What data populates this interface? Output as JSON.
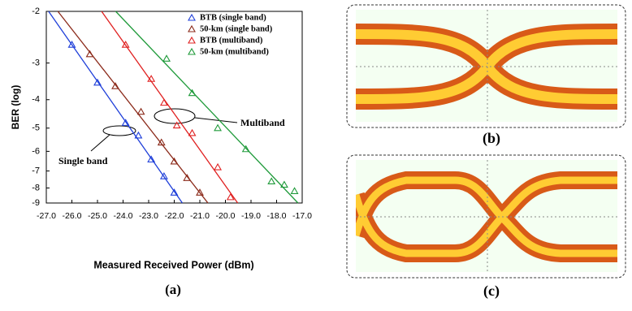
{
  "chart_data": {
    "type": "scatter",
    "yscale": "log",
    "xlabel": "Measured Received Power (dBm)",
    "ylabel": "BER (log)",
    "xlim": [
      -27,
      -17
    ],
    "ylim": [
      -2,
      -9
    ],
    "xticks": [
      {
        "value": -27,
        "label": "-27.0"
      },
      {
        "value": -26,
        "label": "-26.0"
      },
      {
        "value": -25,
        "label": "-25.0"
      },
      {
        "value": -24,
        "label": "-24.0"
      },
      {
        "value": -23,
        "label": "-23.0"
      },
      {
        "value": -22,
        "label": "-22.0"
      },
      {
        "value": -21,
        "label": "-21.0"
      },
      {
        "value": -20,
        "label": "-20.0"
      },
      {
        "value": -19,
        "label": "-19.0"
      },
      {
        "value": -18,
        "label": "-18.0"
      },
      {
        "value": -17,
        "label": "-17.0"
      }
    ],
    "yticks": [
      -2,
      -3,
      -4,
      -5,
      -6,
      -7,
      -8,
      -9
    ],
    "legend": "upper right",
    "series": [
      {
        "name": "BTB (single band)",
        "color": "#1f3fd9",
        "x": [
          -26.0,
          -25.0,
          -23.9,
          -23.4,
          -22.9,
          -22.4,
          -22.0
        ],
        "values": [
          -2.6,
          -3.5,
          -4.8,
          -5.3,
          -6.4,
          -7.3,
          -8.3
        ]
      },
      {
        "name": "50-km (single band)",
        "color": "#8b2a1a",
        "x": [
          -25.3,
          -24.3,
          -23.3,
          -22.5,
          -22.0,
          -21.5,
          -21.0
        ],
        "values": [
          -2.8,
          -3.6,
          -4.4,
          -5.6,
          -6.5,
          -7.4,
          -8.3
        ]
      },
      {
        "name": "BTB (multiband)",
        "color": "#e02020",
        "x": [
          -23.9,
          -22.9,
          -22.4,
          -21.9,
          -21.3,
          -20.3,
          -19.8
        ],
        "values": [
          -2.6,
          -3.4,
          -4.1,
          -4.9,
          -5.2,
          -6.8,
          -8.6
        ]
      },
      {
        "name": "50-km (multiband)",
        "color": "#1f9a3a",
        "x": [
          -22.3,
          -21.3,
          -20.3,
          -19.2,
          -18.2,
          -17.7,
          -17.3
        ],
        "values": [
          -2.9,
          -3.8,
          -5.0,
          -5.9,
          -7.6,
          -7.8,
          -8.2
        ]
      }
    ],
    "annotations": [
      "Multiband",
      "Single band"
    ],
    "panel_labels": [
      "(a)",
      "(b)",
      "(c)"
    ]
  }
}
